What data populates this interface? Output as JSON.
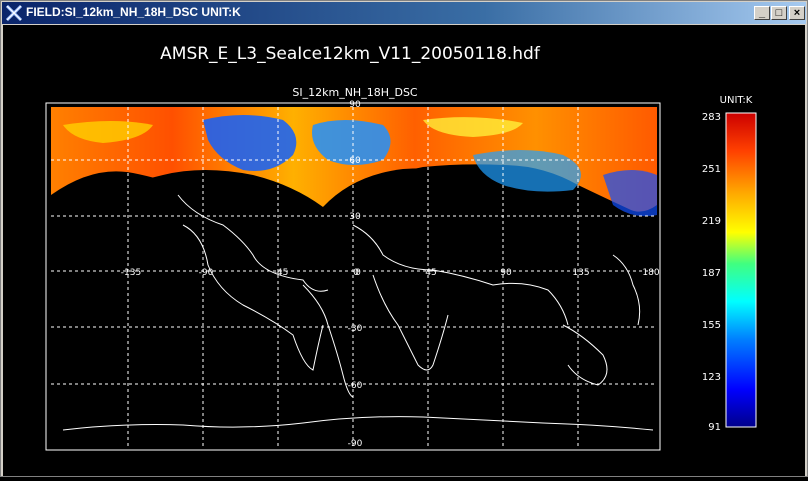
{
  "window": {
    "title": "FIELD:SI_12km_NH_18H_DSC  UNIT:K",
    "minimize_glyph": "_",
    "maximize_glyph": "□",
    "close_glyph": "×"
  },
  "plot": {
    "main_title": "AMSR_E_L3_SeaIce12km_V11_20050118.hdf",
    "subtitle": "SI_12km_NH_18H_DSC",
    "lat_labels": [
      "90",
      "60",
      "30",
      "0",
      "-30",
      "-60",
      "-90"
    ],
    "lon_labels": [
      "-135",
      "-90",
      "-45",
      "0",
      "45",
      "90",
      "135",
      "180"
    ]
  },
  "colorbar": {
    "unit_label": "UNIT:K",
    "tick_labels": [
      "283",
      "251",
      "219",
      "187",
      "155",
      "123",
      "91"
    ],
    "colors": [
      "#00008b",
      "#0000ff",
      "#0080ff",
      "#00ffff",
      "#40ff80",
      "#ffff00",
      "#ffa500",
      "#ff4000",
      "#cc0000"
    ]
  },
  "colors": {
    "plot_background": "#000000",
    "coastline": "#ffffff",
    "gridline": "#ffffff"
  }
}
